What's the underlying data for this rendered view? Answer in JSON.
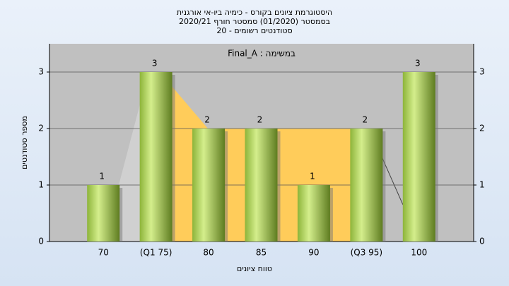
{
  "chart_data": {
    "type": "bar",
    "title": "היסטוגרמת ציונים בקורס - כימיה ביו-אי אורגנית",
    "subtitle": [
      "בסמסטר  (01/2020)  סמסטר חורף 2020/21",
      "סטודנטים רשומים - 20"
    ],
    "annotation": "Final_A : במשימה",
    "x_label": "טווח ציונים",
    "y_label": "מספר סטודנטים",
    "categories": [
      "70",
      "(Q1 75)",
      "80",
      "85",
      "90",
      "(Q3 95)",
      "100"
    ],
    "values": [
      1,
      3,
      2,
      2,
      1,
      2,
      3
    ],
    "color": "#9cc43c",
    "ylim": [
      0,
      3.5
    ],
    "yticks": [
      0,
      1,
      2,
      3
    ],
    "grid": true
  }
}
